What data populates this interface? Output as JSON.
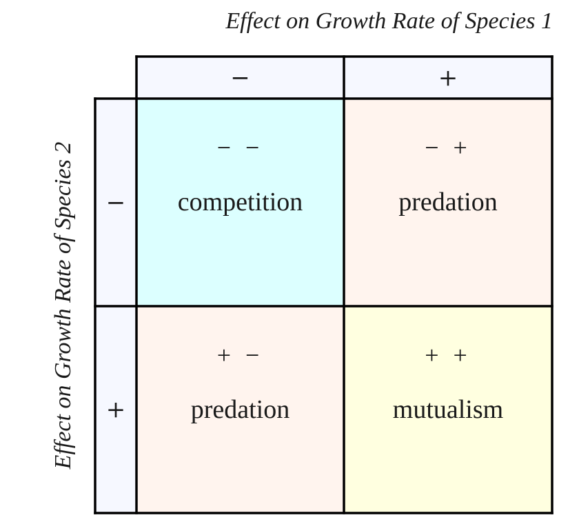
{
  "titles": {
    "top": "Effect on Growth Rate of Species 1",
    "left": "Effect on Growth Rate of Species 2"
  },
  "column_headers": [
    "−",
    "+"
  ],
  "row_headers": [
    "−",
    "+"
  ],
  "quadrants": [
    {
      "signs": "− −",
      "label": "competition"
    },
    {
      "signs": "− +",
      "label": "predation"
    },
    {
      "signs": "+ −",
      "label": "predation"
    },
    {
      "signs": "+ +",
      "label": "mutualism"
    }
  ],
  "colors": {
    "header_bg": "#f6f8ff",
    "competition_bg": "#dcffff",
    "predation_bg": "#fff4ee",
    "mutualism_bg": "#ffffe0",
    "border": "#000000"
  }
}
